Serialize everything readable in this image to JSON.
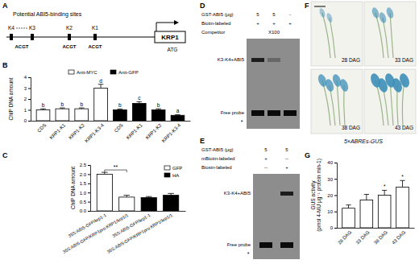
{
  "panel_labels": [
    "A",
    "B",
    "C",
    "D",
    "E",
    "F",
    "G"
  ],
  "diagram": {
    "title": "Potential ABI5-binding sites",
    "sites": [
      "K4",
      "K3",
      "K2",
      "K1"
    ],
    "motifs": [
      "ACGT",
      "ACGT",
      "ACGT"
    ],
    "gene": "KRP1",
    "start_codon": "ATG"
  },
  "chart_data": [
    {
      "type": "bar",
      "ylabel": "ChIP DNA amount",
      "categories": [
        "CDS",
        "KRP1-K1",
        "KRP1-K2",
        "KRP1-K3-4",
        "CDS",
        "KRP1-K1",
        "KRP1-K2",
        "KRP1-K3-4"
      ],
      "series": [
        {
          "name": "Anit-MYC",
          "color": "#ffffff",
          "values": [
            1.0,
            1.1,
            1.1,
            3.0,
            null,
            null,
            null,
            null
          ],
          "errors": [
            0.1,
            0.08,
            0.08,
            0.35,
            null,
            null,
            null,
            null
          ],
          "letters": [
            "b",
            "b",
            "b",
            "d",
            null,
            null,
            null,
            null
          ]
        },
        {
          "name": "Anit-GFP",
          "color": "#000000",
          "values": [
            null,
            null,
            null,
            null,
            1.0,
            1.6,
            1.0,
            0.5
          ],
          "errors": [
            null,
            null,
            null,
            null,
            0.08,
            0.15,
            0.1,
            0.06
          ],
          "letters": [
            null,
            null,
            null,
            null,
            "b",
            "c",
            "b",
            "a"
          ]
        }
      ],
      "ylim": [
        0,
        4
      ],
      "yticks": [
        0,
        1,
        2,
        3,
        4
      ],
      "legend": "top"
    },
    {
      "type": "bar",
      "ylabel": "ChIP DNA amount",
      "categories": [
        "35S:ABI5-GFP/krp1-1",
        "35S:ABI5-GFP/KRP1pro:KRP1/krp1/1",
        "35S:ABI5-GFP/krp1-1",
        "35S:ABI5-GFP/KRP1pro:KRP1/krp1/1"
      ],
      "series": [
        {
          "name": "GFP",
          "color": "#ffffff",
          "values": [
            2.0,
            0.75,
            null,
            null
          ],
          "errors": [
            0.1,
            0.1,
            null,
            null
          ]
        },
        {
          "name": "HA",
          "color": "#000000",
          "values": [
            null,
            null,
            0.72,
            0.85
          ],
          "errors": [
            null,
            null,
            0.06,
            0.1
          ]
        }
      ],
      "annotation": "**",
      "ylim": [
        0,
        2.5
      ],
      "yticks": [
        {
          "value": 0,
          "label": "0.0"
        },
        {
          "value": 0.5,
          "label": "0.5"
        },
        {
          "value": 1,
          "label": "1.0"
        },
        {
          "value": 1.5,
          "label": "1.5"
        },
        {
          "value": 2,
          "label": "2.0"
        },
        {
          "value": 2.5,
          "label": "2.5"
        }
      ],
      "legend": "top-right"
    },
    {
      "type": "bar",
      "ylabel": "GUS activity (pmol 4-MU μg⁻¹ protein min-1)",
      "categories": [
        "28 DAG",
        "33 DAG",
        "38 DAG",
        "43 DAG"
      ],
      "values": [
        12,
        17,
        20,
        25
      ],
      "errors": [
        2,
        3.5,
        3,
        4
      ],
      "letters": [
        null,
        null,
        "*",
        "*"
      ],
      "color": "#ffffff",
      "ylim": [
        0,
        40
      ],
      "yticks": [
        0,
        10,
        20,
        30,
        40
      ]
    }
  ],
  "gel_d": {
    "rows": [
      {
        "label": "GST-ABI5 (μg)",
        "lanes": [
          "5",
          "5",
          "-"
        ]
      },
      {
        "label": "Biotin-labeled",
        "lanes": [
          "+",
          "+",
          "+"
        ]
      },
      {
        "label": "Competitor",
        "lanes": [
          null,
          "X100",
          null
        ]
      }
    ],
    "bands": [
      "K3-K4+ABI5",
      "Free probe"
    ],
    "asterisk": "*"
  },
  "gel_e": {
    "rows": [
      {
        "label": "GST-ABI5 (μg)",
        "lanes": [
          "5",
          "5"
        ]
      },
      {
        "label": "mBiotin-labeled",
        "lanes": [
          "+",
          "--"
        ]
      },
      {
        "label": "Biosin-labeled",
        "lanes": [
          "--",
          "+"
        ]
      }
    ],
    "bands": [
      "K3-K4+ABI5",
      "Free probe"
    ],
    "asterisk": "*"
  },
  "photos": {
    "labels": [
      "28 DAG",
      "33 DAG",
      "38 DAG",
      "43 DAG"
    ],
    "caption": "5×ABREs-GUS"
  }
}
